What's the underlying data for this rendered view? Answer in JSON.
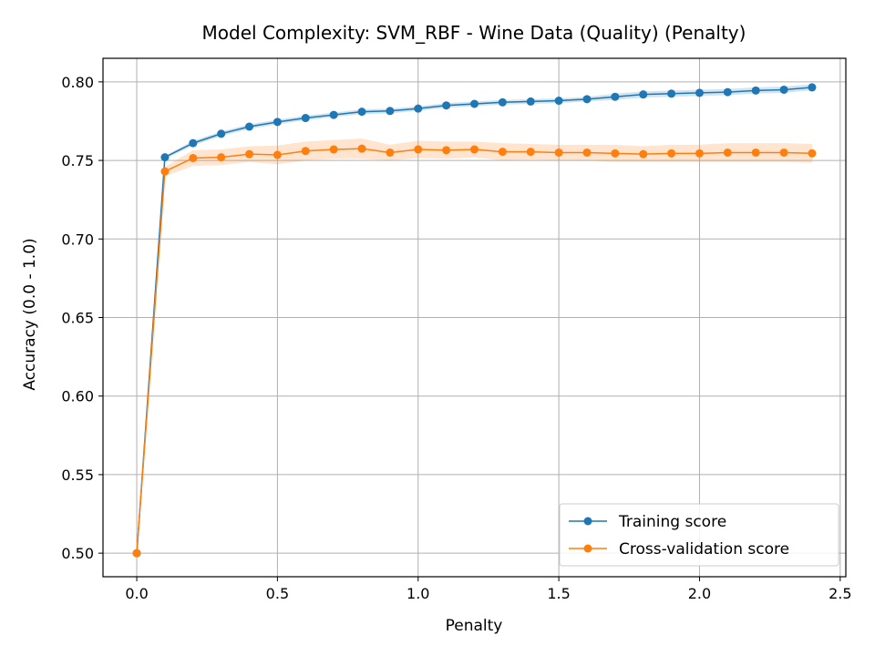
{
  "chart_data": {
    "type": "line",
    "title": "Model Complexity: SVM_RBF - Wine Data (Quality) (Penalty)",
    "xlabel": "Penalty",
    "ylabel": "Accuracy (0.0 - 1.0)",
    "xlim": [
      -0.12,
      2.52
    ],
    "ylim": [
      0.485,
      0.815
    ],
    "xticks": [
      0.0,
      0.5,
      1.0,
      1.5,
      2.0,
      2.5
    ],
    "xtick_labels": [
      "0.0",
      "0.5",
      "1.0",
      "1.5",
      "2.0",
      "2.5"
    ],
    "yticks": [
      0.5,
      0.55,
      0.6,
      0.65,
      0.7,
      0.75,
      0.8
    ],
    "ytick_labels": [
      "0.50",
      "0.55",
      "0.60",
      "0.65",
      "0.70",
      "0.75",
      "0.80"
    ],
    "grid": true,
    "legend_position": "bottom-right",
    "x": [
      0.0,
      0.1,
      0.2,
      0.3,
      0.4,
      0.5,
      0.6,
      0.7,
      0.8,
      0.9,
      1.0,
      1.1,
      1.2,
      1.3,
      1.4,
      1.5,
      1.6,
      1.7,
      1.8,
      1.9,
      2.0,
      2.1,
      2.2,
      2.3,
      2.4
    ],
    "series": [
      {
        "name": "Training score",
        "color": "#1f77b4",
        "band_color": "#1f77b4",
        "values": [
          0.5,
          0.752,
          0.761,
          0.767,
          0.7715,
          0.7745,
          0.777,
          0.779,
          0.781,
          0.7815,
          0.783,
          0.785,
          0.786,
          0.787,
          0.7875,
          0.788,
          0.789,
          0.7905,
          0.792,
          0.7925,
          0.793,
          0.7935,
          0.7945,
          0.795,
          0.7965
        ],
        "std": [
          0.0,
          0.001,
          0.0015,
          0.0015,
          0.0015,
          0.0015,
          0.0015,
          0.0015,
          0.0015,
          0.0015,
          0.0015,
          0.0015,
          0.0015,
          0.0015,
          0.0015,
          0.0015,
          0.0015,
          0.002,
          0.002,
          0.002,
          0.002,
          0.002,
          0.002,
          0.002,
          0.002
        ]
      },
      {
        "name": "Cross-validation score",
        "color": "#ff7f0e",
        "band_color": "#ff7f0e",
        "values": [
          0.5,
          0.743,
          0.7515,
          0.752,
          0.754,
          0.7535,
          0.756,
          0.757,
          0.7575,
          0.755,
          0.757,
          0.7565,
          0.757,
          0.7555,
          0.7555,
          0.755,
          0.755,
          0.7545,
          0.754,
          0.7545,
          0.7545,
          0.755,
          0.755,
          0.755,
          0.7545
        ],
        "std": [
          0.0,
          0.003,
          0.005,
          0.005,
          0.005,
          0.006,
          0.006,
          0.006,
          0.0065,
          0.005,
          0.0055,
          0.0055,
          0.005,
          0.0055,
          0.005,
          0.005,
          0.005,
          0.0055,
          0.005,
          0.0055,
          0.0055,
          0.006,
          0.006,
          0.006,
          0.006
        ]
      }
    ]
  }
}
